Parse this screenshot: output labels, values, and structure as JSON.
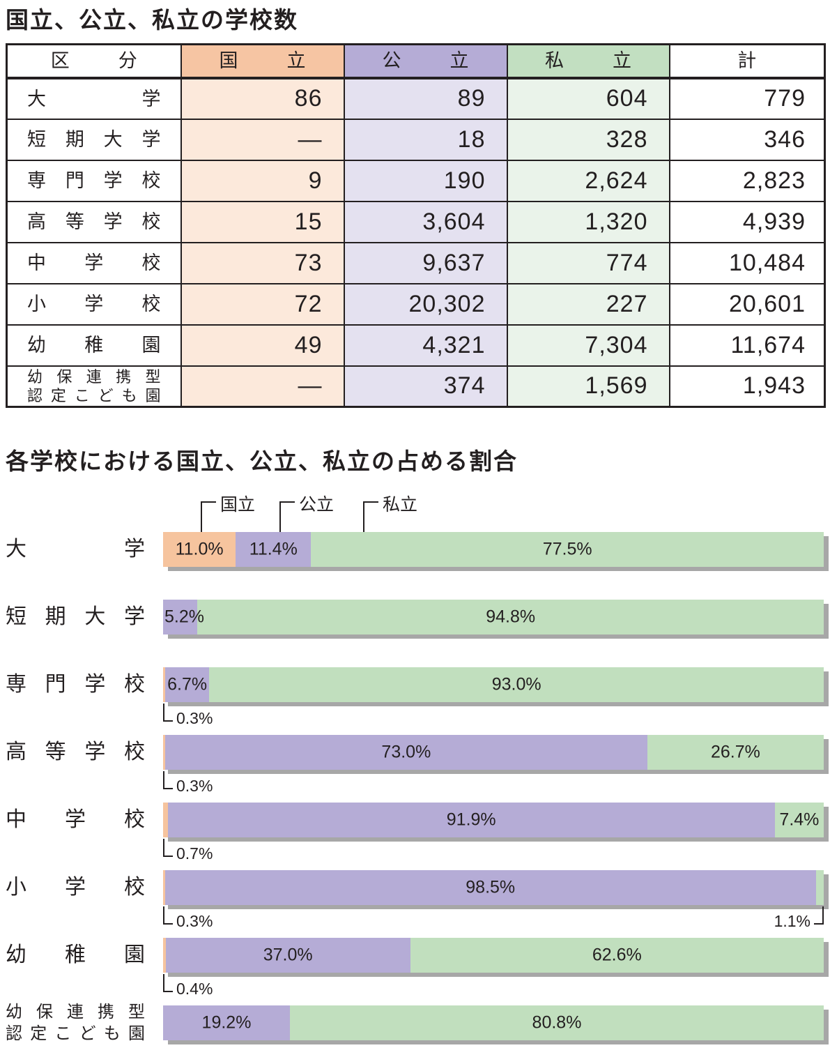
{
  "colors": {
    "national_header": "#F6C5A3",
    "national_cell": "#FCE9DB",
    "national_bar": "#F6C49E",
    "public_header": "#B5ACD6",
    "public_cell": "#E4E1F0",
    "public_bar": "#B5ACD6",
    "private_header": "#C2DFC1",
    "private_cell": "#EAF3EA",
    "private_bar": "#C1DFBE",
    "bar_shadow": "#A7A7A7",
    "border": "#231F20"
  },
  "table": {
    "title": "国立、公立、私立の学校数",
    "headers": {
      "category": "区分",
      "national": "国立",
      "public": "公立",
      "private": "私立",
      "total": "計"
    },
    "rows": [
      {
        "label": [
          "大学"
        ],
        "national": "86",
        "public": "89",
        "private": "604",
        "total": "779"
      },
      {
        "label": [
          "短期大学"
        ],
        "national": "—",
        "public": "18",
        "private": "328",
        "total": "346"
      },
      {
        "label": [
          "専門学校"
        ],
        "national": "9",
        "public": "190",
        "private": "2,624",
        "total": "2,823"
      },
      {
        "label": [
          "高等学校"
        ],
        "national": "15",
        "public": "3,604",
        "private": "1,320",
        "total": "4,939"
      },
      {
        "label": [
          "中学校"
        ],
        "national": "73",
        "public": "9,637",
        "private": "774",
        "total": "10,484"
      },
      {
        "label": [
          "小学校"
        ],
        "national": "72",
        "public": "20,302",
        "private": "227",
        "total": "20,601"
      },
      {
        "label": [
          "幼稚園"
        ],
        "national": "49",
        "public": "4,321",
        "private": "7,304",
        "total": "11,674"
      },
      {
        "label": [
          "幼保連携型",
          "認定こども園"
        ],
        "national": "—",
        "public": "374",
        "private": "1,569",
        "total": "1,943"
      }
    ]
  },
  "chart": {
    "title": "各学校における国立、公立、私立の占める割合",
    "legend": [
      "国立",
      "公立",
      "私立"
    ],
    "rows": [
      {
        "label": [
          "大学"
        ],
        "segments": [
          {
            "key": "national",
            "pct": 11.0,
            "label": "11.0%",
            "placement": "inside"
          },
          {
            "key": "public",
            "pct": 11.4,
            "label": "11.4%",
            "placement": "inside"
          },
          {
            "key": "private",
            "pct": 77.5,
            "label": "77.5%",
            "placement": "inside"
          }
        ]
      },
      {
        "label": [
          "短期大学"
        ],
        "segments": [
          {
            "key": "public",
            "pct": 5.2,
            "label": "5.2%",
            "placement": "inside"
          },
          {
            "key": "private",
            "pct": 94.8,
            "label": "94.8%",
            "placement": "inside"
          }
        ]
      },
      {
        "label": [
          "専門学校"
        ],
        "segments": [
          {
            "key": "national",
            "pct": 0.3,
            "label": "0.3%",
            "placement": "below-left"
          },
          {
            "key": "public",
            "pct": 6.7,
            "label": "6.7%",
            "placement": "inside"
          },
          {
            "key": "private",
            "pct": 93.0,
            "label": "93.0%",
            "placement": "inside"
          }
        ]
      },
      {
        "label": [
          "高等学校"
        ],
        "segments": [
          {
            "key": "national",
            "pct": 0.3,
            "label": "0.3%",
            "placement": "below-left"
          },
          {
            "key": "public",
            "pct": 73.0,
            "label": "73.0%",
            "placement": "inside"
          },
          {
            "key": "private",
            "pct": 26.7,
            "label": "26.7%",
            "placement": "inside"
          }
        ]
      },
      {
        "label": [
          "中学校"
        ],
        "segments": [
          {
            "key": "national",
            "pct": 0.7,
            "label": "0.7%",
            "placement": "below-left"
          },
          {
            "key": "public",
            "pct": 91.9,
            "label": "91.9%",
            "placement": "inside"
          },
          {
            "key": "private",
            "pct": 7.4,
            "label": "7.4%",
            "placement": "inside"
          }
        ]
      },
      {
        "label": [
          "小学校"
        ],
        "segments": [
          {
            "key": "national",
            "pct": 0.3,
            "label": "0.3%",
            "placement": "below-left"
          },
          {
            "key": "public",
            "pct": 98.5,
            "label": "98.5%",
            "placement": "inside"
          },
          {
            "key": "private",
            "pct": 1.1,
            "label": "1.1%",
            "placement": "below-right"
          }
        ]
      },
      {
        "label": [
          "幼稚園"
        ],
        "segments": [
          {
            "key": "national",
            "pct": 0.4,
            "label": "0.4%",
            "placement": "below-left"
          },
          {
            "key": "public",
            "pct": 37.0,
            "label": "37.0%",
            "placement": "inside"
          },
          {
            "key": "private",
            "pct": 62.6,
            "label": "62.6%",
            "placement": "inside"
          }
        ]
      },
      {
        "label": [
          "幼保連携型",
          "認定こども園"
        ],
        "segments": [
          {
            "key": "public",
            "pct": 19.2,
            "label": "19.2%",
            "placement": "inside"
          },
          {
            "key": "private",
            "pct": 80.8,
            "label": "80.8%",
            "placement": "inside"
          }
        ]
      }
    ]
  },
  "chart_data": [
    {
      "type": "table",
      "title": "国立、公立、私立の学校数",
      "columns": [
        "区分",
        "国立",
        "公立",
        "私立",
        "計"
      ],
      "rows": [
        [
          "大学",
          86,
          89,
          604,
          779
        ],
        [
          "短期大学",
          null,
          18,
          328,
          346
        ],
        [
          "専門学校",
          9,
          190,
          2624,
          2823
        ],
        [
          "高等学校",
          15,
          3604,
          1320,
          4939
        ],
        [
          "中学校",
          73,
          9637,
          774,
          10484
        ],
        [
          "小学校",
          72,
          20302,
          227,
          20601
        ],
        [
          "幼稚園",
          49,
          4321,
          7304,
          11674
        ],
        [
          "幼保連携型認定こども園",
          null,
          374,
          1569,
          1943
        ]
      ]
    },
    {
      "type": "bar",
      "orientation": "horizontal",
      "stacked": true,
      "title": "各学校における国立、公立、私立の占める割合",
      "unit": "%",
      "xlim": [
        0,
        100
      ],
      "legend_position": "top",
      "categories": [
        "大学",
        "短期大学",
        "専門学校",
        "高等学校",
        "中学校",
        "小学校",
        "幼稚園",
        "幼保連携型認定こども園"
      ],
      "series": [
        {
          "name": "国立",
          "values": [
            11.0,
            null,
            0.3,
            0.3,
            0.7,
            0.3,
            0.4,
            null
          ]
        },
        {
          "name": "公立",
          "values": [
            11.4,
            5.2,
            6.7,
            73.0,
            91.9,
            98.5,
            37.0,
            19.2
          ]
        },
        {
          "name": "私立",
          "values": [
            77.5,
            94.8,
            93.0,
            26.7,
            7.4,
            1.1,
            62.6,
            80.8
          ]
        }
      ]
    }
  ]
}
